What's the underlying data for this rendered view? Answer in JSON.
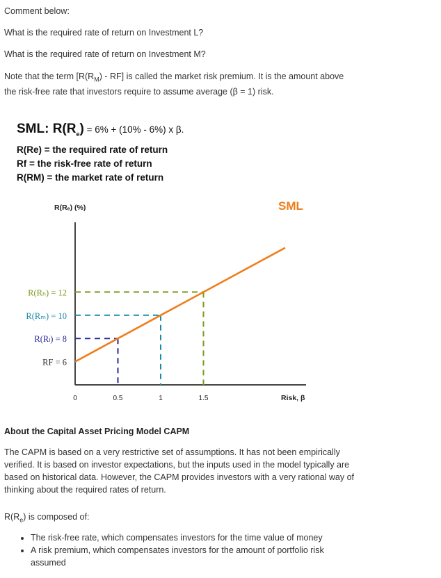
{
  "intro": {
    "heading": "Comment below:",
    "q1": "What is the required rate of return on Investment L?",
    "q2": "What is the required rate of return on Investment M?",
    "note_pre": "Note that the term [R(R",
    "note_sub": "M",
    "note_post": ") - RF] is called the market risk premium. It is the amount above",
    "note_line2": "the risk-free rate that investors require to assume average (β = 1) risk."
  },
  "sml_box": {
    "title_bold": "SML: R(R",
    "title_sub": "e",
    "title_bold_close": ")",
    "title_rest": " = 6% + (10% - 6%) x β.",
    "def1": "R(Re) = the required rate of return",
    "def2": "Rf = the risk-free rate of return",
    "def3": "R(RM) = the market rate of return"
  },
  "chart_data": {
    "type": "line",
    "title": "",
    "ylabel": "R(Rₑ) (%)",
    "xlabel": "Risk, β",
    "line_label": "SML",
    "x": [
      0,
      1.5
    ],
    "y": [
      6,
      12
    ],
    "xticks": [
      "0",
      "0.5",
      "1",
      "1.5"
    ],
    "xlim": [
      0,
      2.2
    ],
    "ylim": [
      0,
      14
    ],
    "reference_points": [
      {
        "label": "R(Rₕ) = 12",
        "beta": 1.5,
        "value": 12,
        "color": "#7a9a1a"
      },
      {
        "label": "R(Rₘ) = 10",
        "beta": 1.0,
        "value": 10,
        "color": "#1a8aaa"
      },
      {
        "label": "R(Rₗ) = 8",
        "beta": 0.5,
        "value": 8,
        "color": "#2a2a9a"
      },
      {
        "label": "RF = 6",
        "beta": 0,
        "value": 6,
        "color": "#333333"
      }
    ],
    "line_color": "#ef7d1a"
  },
  "about": {
    "heading": "About the Capital Asset Pricing Model CAPM",
    "para1": [
      "The CAPM is based on a very restrictive set of assumptions. It has not been empirically",
      "verified. It is based on investor expectations, but the inputs used in the model typically are",
      "based on historical data. However, the CAPM provides investors with a very rational way of",
      "thinking about the required rates of return."
    ],
    "composed_pre": "R(R",
    "composed_sub": "e",
    "composed_post": ") is composed of:",
    "bullets": [
      "The risk-free rate, which compensates investors for the time value of money",
      "A risk premium, which compensates investors for the amount of portfolio risk assumed"
    ]
  }
}
